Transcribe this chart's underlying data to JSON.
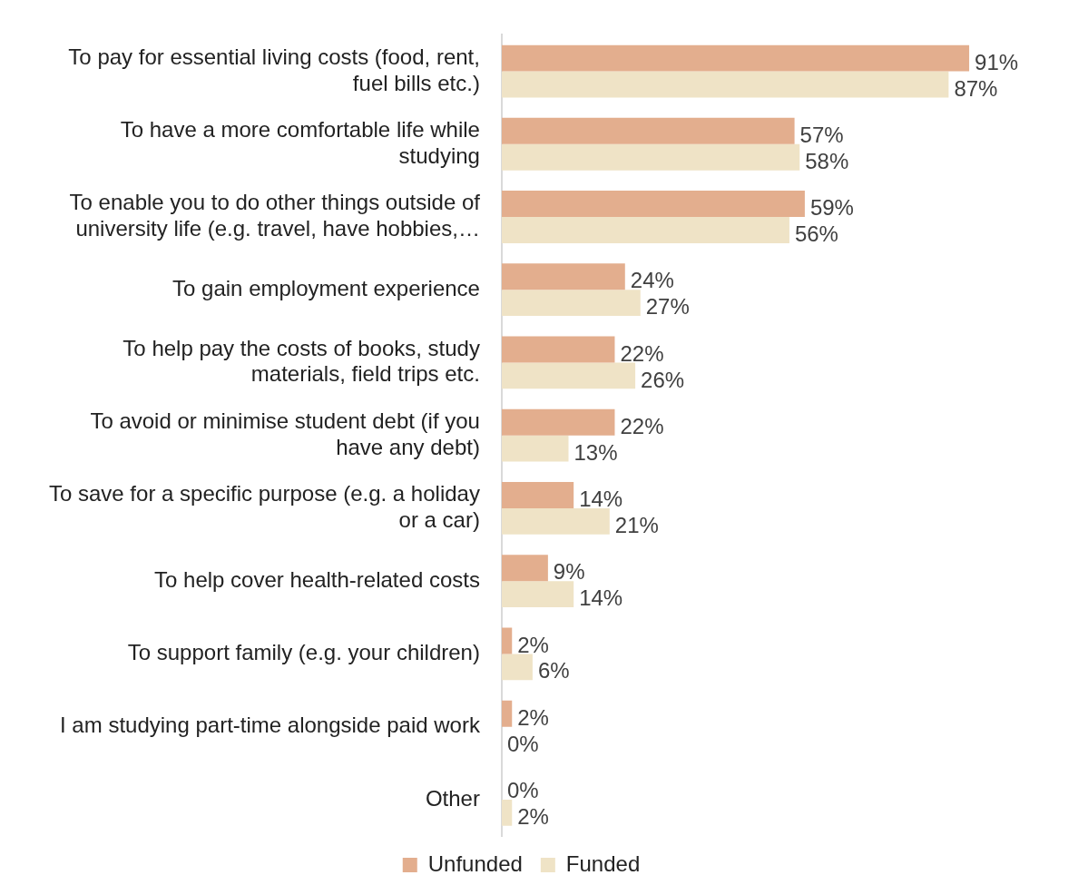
{
  "chart_data": {
    "type": "bar",
    "orientation": "horizontal",
    "categories": [
      "To pay for essential living costs (food, rent, fuel bills etc.)",
      "To have a more comfortable life while studying",
      "To enable you to do other things outside of university life (e.g. travel, have hobbies,…",
      "To gain employment experience",
      "To help pay the costs of books, study materials, field trips etc.",
      "To avoid or minimise student debt (if you have any debt)",
      "To save for a specific purpose (e.g. a holiday or a car)",
      "To help cover health-related costs",
      "To support family (e.g. your children)",
      "I am studying part-time alongside paid work",
      "Other"
    ],
    "series": [
      {
        "name": "Unfunded",
        "color": "#e3ae8e",
        "values": [
          91,
          57,
          59,
          24,
          22,
          22,
          14,
          9,
          2,
          2,
          0
        ],
        "value_labels": [
          "91%",
          "57%",
          "59%",
          "24%",
          "22%",
          "22%",
          "14%",
          "9%",
          "2%",
          "2%",
          "0%"
        ]
      },
      {
        "name": "Funded",
        "color": "#efe3c6",
        "values": [
          87,
          58,
          56,
          27,
          26,
          13,
          21,
          14,
          6,
          0,
          2
        ],
        "value_labels": [
          "87%",
          "58%",
          "56%",
          "27%",
          "26%",
          "13%",
          "21%",
          "14%",
          "6%",
          "0%",
          "2%"
        ]
      }
    ],
    "legend": "bottom"
  }
}
